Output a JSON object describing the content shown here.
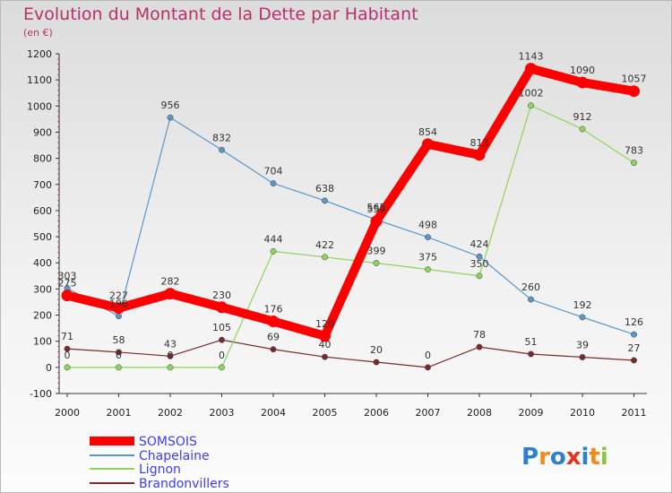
{
  "chart_data": {
    "type": "line",
    "title": "Evolution du Montant de la Dette par Habitant",
    "subtitle": "(en €)",
    "xlabel": "",
    "ylabel": "",
    "categories": [
      "2000",
      "2001",
      "2002",
      "2003",
      "2004",
      "2005",
      "2006",
      "2007",
      "2008",
      "2009",
      "2010",
      "2011"
    ],
    "ylim": [
      -100,
      1200
    ],
    "yticks": [
      -100,
      0,
      100,
      200,
      300,
      400,
      500,
      600,
      700,
      800,
      900,
      1000,
      1100,
      1200
    ],
    "grid": false,
    "legend_position": "bottom-left",
    "series": [
      {
        "name": "SOMSOIS",
        "color": "#ff0000",
        "values": [
          275,
          227,
          282,
          230,
          176,
          120,
          559,
          854,
          813,
          1143,
          1090,
          1057
        ]
      },
      {
        "name": "Chapelaine",
        "color": "#5b96c8",
        "values": [
          303,
          196,
          956,
          832,
          704,
          638,
          565,
          498,
          424,
          260,
          192,
          126
        ]
      },
      {
        "name": "Lignon",
        "color": "#8ed35b",
        "values": [
          0,
          0,
          0,
          0,
          444,
          422,
          399,
          375,
          350,
          1002,
          912,
          783
        ]
      },
      {
        "name": "Brandonvillers",
        "color": "#7a2a2a",
        "values": [
          71,
          58,
          43,
          105,
          69,
          40,
          20,
          0,
          78,
          51,
          39,
          27
        ]
      }
    ]
  },
  "logo": {
    "text": "Proxiti"
  }
}
